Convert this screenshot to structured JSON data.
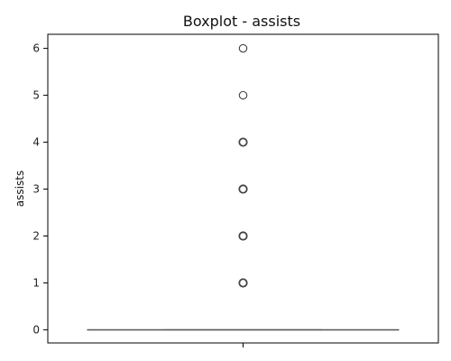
{
  "chart_data": {
    "type": "box",
    "title": "Boxplot - assists",
    "xlabel": "",
    "ylabel": "assists",
    "ylim": [
      -0.28,
      6.3
    ],
    "yticks": [
      0,
      1,
      2,
      3,
      4,
      5,
      6
    ],
    "ytick_labels": [
      "0",
      "1",
      "2",
      "3",
      "4",
      "5",
      "6"
    ],
    "grid": false,
    "box": {
      "min": 0,
      "q1": 0,
      "median": 0,
      "q3": 0,
      "max": 0,
      "outliers": [
        1,
        2,
        3,
        4,
        5,
        6
      ]
    },
    "colors": {
      "box_line": "#555555",
      "outlier_stroke": "#444444",
      "axis": "#000000"
    }
  }
}
